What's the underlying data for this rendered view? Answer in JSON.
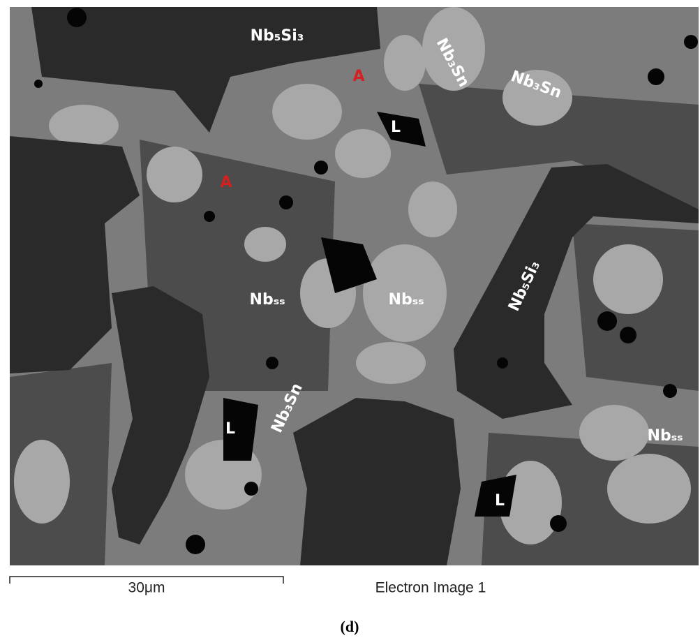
{
  "image": {
    "labels": [
      "Nb₅Si₃",
      "Nb₃Sn",
      "Nb₃Sn",
      "A",
      "L",
      "A",
      "Nbₛₛ",
      "Nbₛₛ",
      "Nb₅Si₃",
      "L",
      "Nb₃Sn",
      "L",
      "Nbₛₛ"
    ],
    "scale_bar": "30μm",
    "caption": "Electron Image 1"
  },
  "figure_label": "(d)"
}
